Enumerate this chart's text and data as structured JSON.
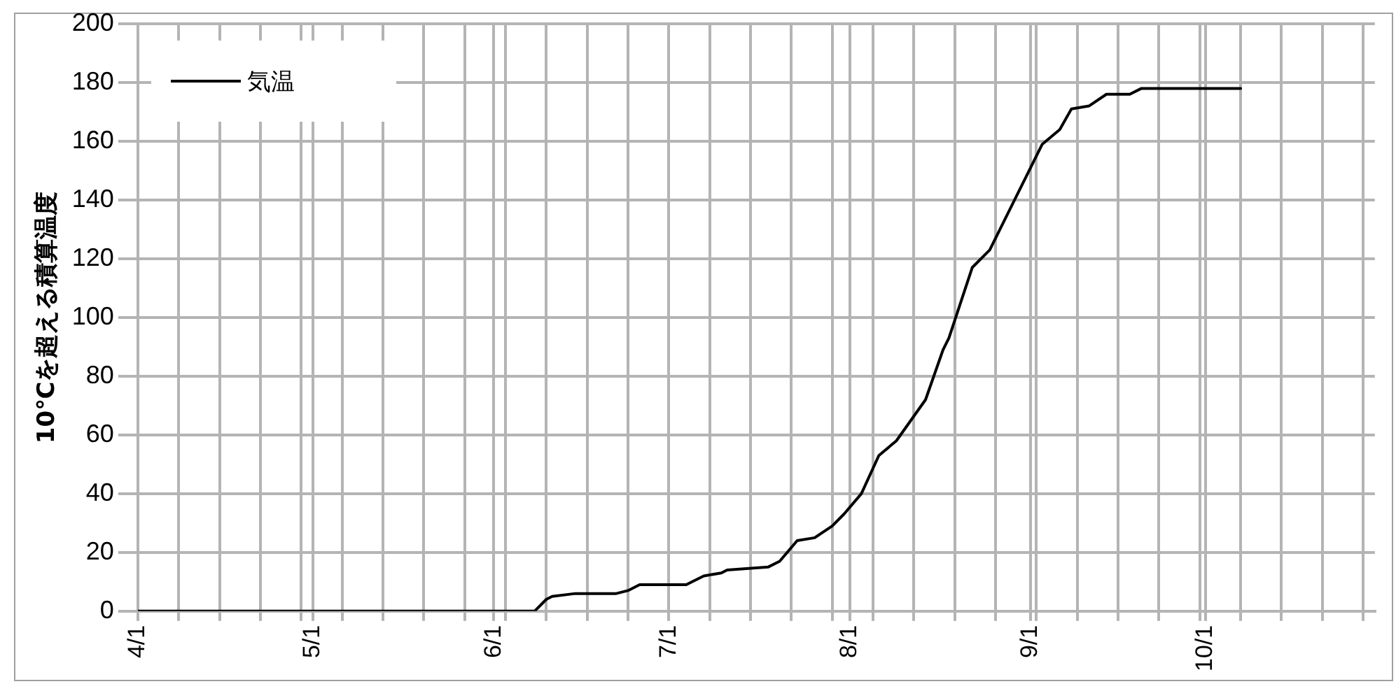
{
  "chart_data": {
    "type": "line",
    "ylabel": "10℃を超える積算温度",
    "x": [
      "--04-01",
      "--06-08",
      "--06-10",
      "--06-11",
      "--06-15",
      "--06-22",
      "--06-24",
      "--06-26",
      "--07-04",
      "--07-05",
      "--07-07",
      "--07-10",
      "--07-11",
      "--07-18",
      "--07-20",
      "--07-23",
      "--07-26",
      "--07-29",
      "--07-31",
      "--08-03",
      "--08-06",
      "--08-09",
      "--08-14",
      "--08-17",
      "--08-18",
      "--08-22",
      "--08-25",
      "--08-29",
      "--09-03",
      "--09-06",
      "--09-08",
      "--09-11",
      "--09-14",
      "--09-18",
      "--09-20",
      "--10-07"
    ],
    "series": [
      {
        "name": "気温",
        "color": "#000000",
        "values": [
          0,
          0,
          4,
          5,
          6,
          6,
          7,
          9,
          9,
          10,
          12,
          13,
          14,
          15,
          17,
          24,
          25,
          29,
          33,
          40,
          53,
          58,
          72,
          89,
          93,
          117,
          123,
          139,
          159,
          164,
          171,
          172,
          176,
          176,
          178,
          178
        ]
      }
    ],
    "xlim": [
      "--04-01",
      "--10-30"
    ],
    "xticks": [
      {
        "value": "--04-01",
        "label": "4/1"
      },
      {
        "value": "--04-08",
        "label": null
      },
      {
        "value": "--04-15",
        "label": null
      },
      {
        "value": "--04-22",
        "label": null
      },
      {
        "value": "--04-29",
        "label": null
      },
      {
        "value": "--05-01",
        "label": "5/1"
      },
      {
        "value": "--05-06",
        "label": null
      },
      {
        "value": "--05-13",
        "label": null
      },
      {
        "value": "--05-20",
        "label": null
      },
      {
        "value": "--05-27",
        "label": null
      },
      {
        "value": "--06-01",
        "label": "6/1"
      },
      {
        "value": "--06-03",
        "label": null
      },
      {
        "value": "--06-10",
        "label": null
      },
      {
        "value": "--06-17",
        "label": null
      },
      {
        "value": "--06-24",
        "label": null
      },
      {
        "value": "--07-01",
        "label": "7/1"
      },
      {
        "value": "--07-08",
        "label": null
      },
      {
        "value": "--07-15",
        "label": null
      },
      {
        "value": "--07-22",
        "label": null
      },
      {
        "value": "--07-29",
        "label": null
      },
      {
        "value": "--08-01",
        "label": "8/1"
      },
      {
        "value": "--08-05",
        "label": null
      },
      {
        "value": "--08-12",
        "label": null
      },
      {
        "value": "--08-19",
        "label": null
      },
      {
        "value": "--08-26",
        "label": null
      },
      {
        "value": "--09-01",
        "label": "9/1"
      },
      {
        "value": "--09-02",
        "label": null
      },
      {
        "value": "--09-09",
        "label": null
      },
      {
        "value": "--09-16",
        "label": null
      },
      {
        "value": "--09-23",
        "label": null
      },
      {
        "value": "--09-30",
        "label": null
      },
      {
        "value": "--10-01",
        "label": "10/1"
      },
      {
        "value": "--10-07",
        "label": null
      },
      {
        "value": "--10-14",
        "label": null
      },
      {
        "value": "--10-21",
        "label": null
      },
      {
        "value": "--10-28",
        "label": null
      }
    ],
    "ylim": [
      0,
      200
    ],
    "yticks": [
      0,
      20,
      40,
      60,
      80,
      100,
      120,
      140,
      160,
      180,
      200
    ],
    "grid": true,
    "legend": "top left",
    "marker": "none",
    "line_style": "solid"
  }
}
